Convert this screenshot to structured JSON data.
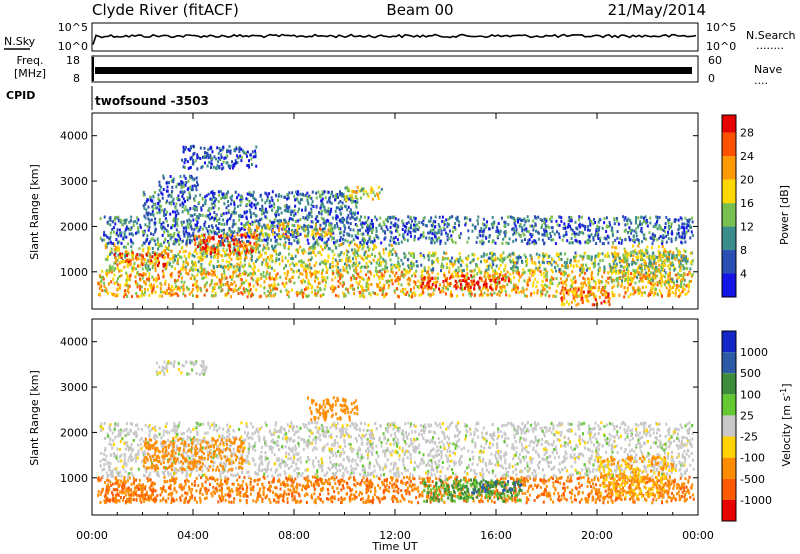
{
  "header": {
    "station": "Clyde River (fitACF)",
    "beam": "Beam 00",
    "date": "21/May/2014"
  },
  "strip": {
    "nsky_label": "N.Sky",
    "nsearch_label": "N.Search",
    "nsearch_dots": "........",
    "freq_label_top": "Freq.",
    "freq_label_bottom": "[MHz]",
    "nave_label": "Nave",
    "nave_dots": "....",
    "cpid_label": "CPID",
    "cpid_text": "twofsound -3503",
    "noise_left_ticks": [
      "10^5",
      "10^0"
    ],
    "noise_right_ticks": [
      "10^5",
      "10^0"
    ],
    "freq_ticks": [
      "18",
      "8"
    ],
    "nave_ticks": [
      "60",
      "0"
    ]
  },
  "chart_data": [
    {
      "type": "heatmap",
      "name": "power",
      "xlabel": "",
      "ylabel": "Slant Range [km]",
      "x_ticks": [
        "00:00",
        "04:00",
        "08:00",
        "12:00",
        "16:00",
        "20:00",
        "00:00"
      ],
      "x_tick_hours": [
        0,
        4,
        8,
        12,
        16,
        20,
        24
      ],
      "xlim_hours": [
        0,
        24
      ],
      "y_ticks": [
        1000,
        2000,
        3000,
        4000
      ],
      "ylim": [
        180,
        4500
      ],
      "colorbar_label": "Power [dB]",
      "colorbar_ticks": [
        4,
        8,
        12,
        16,
        20,
        24,
        28
      ],
      "colorbar_range": [
        0,
        31
      ],
      "colors": [
        "#1414e6",
        "#2a50b4",
        "#3c8c8c",
        "#78c050",
        "#ffd700",
        "#ff9a00",
        "#ff5000",
        "#e60000"
      ],
      "bands": [
        {
          "t0": 0.2,
          "t1": 23.8,
          "r0": 480,
          "r1": 1050,
          "level": 20
        },
        {
          "t0": 0.5,
          "t1": 12.0,
          "r0": 1050,
          "r1": 1650,
          "level": 16
        },
        {
          "t0": 12.0,
          "t1": 23.8,
          "r0": 1050,
          "r1": 1450,
          "level": 14
        },
        {
          "t0": 0.3,
          "t1": 23.8,
          "r0": 1650,
          "r1": 2250,
          "level": 8
        },
        {
          "t0": 2.0,
          "t1": 10.5,
          "r0": 2250,
          "r1": 2800,
          "level": 8
        },
        {
          "t0": 2.6,
          "t1": 4.2,
          "r0": 2800,
          "r1": 3150,
          "level": 8
        },
        {
          "t0": 10.0,
          "t1": 11.5,
          "r0": 2600,
          "r1": 2900,
          "level": 16
        },
        {
          "t0": 3.5,
          "t1": 6.5,
          "r0": 3300,
          "r1": 3800,
          "level": 6
        },
        {
          "t0": 6.0,
          "t1": 9.5,
          "r0": 1800,
          "r1": 2100,
          "level": 18
        },
        {
          "t0": 13.0,
          "t1": 16.5,
          "r0": 650,
          "r1": 950,
          "level": 28
        },
        {
          "t0": 4.0,
          "t1": 6.5,
          "r0": 1400,
          "r1": 1850,
          "level": 26
        },
        {
          "t0": 0.8,
          "t1": 3.0,
          "r0": 1150,
          "r1": 1450,
          "level": 24
        },
        {
          "t0": 18.5,
          "t1": 20.5,
          "r0": 300,
          "r1": 700,
          "level": 24
        },
        {
          "t0": 20.5,
          "t1": 23.5,
          "r0": 800,
          "r1": 1600,
          "level": 16
        }
      ]
    },
    {
      "type": "heatmap",
      "name": "velocity",
      "xlabel": "Time UT",
      "ylabel": "Slant Range [km]",
      "x_ticks": [
        "00:00",
        "04:00",
        "08:00",
        "12:00",
        "16:00",
        "20:00",
        "00:00"
      ],
      "x_tick_hours": [
        0,
        4,
        8,
        12,
        16,
        20,
        24
      ],
      "xlim_hours": [
        0,
        24
      ],
      "y_ticks": [
        1000,
        2000,
        3000,
        4000
      ],
      "ylim": [
        180,
        4500
      ],
      "colorbar_label": "Velocity [m s^-1]",
      "colorbar_ticks": [
        "1000",
        "500",
        "100",
        "25",
        "-25",
        "-100",
        "-500",
        "-1000"
      ],
      "colors": [
        "#1428c8",
        "#2d5aa5",
        "#3c8c3c",
        "#64c832",
        "#c8c8c8",
        "#ffd200",
        "#ff8c00",
        "#ff5a00",
        "#e60000"
      ],
      "bands": [
        {
          "t0": 0.2,
          "t1": 23.8,
          "r0": 480,
          "r1": 1050,
          "level": -250
        },
        {
          "t0": 0.3,
          "t1": 23.8,
          "r0": 1050,
          "r1": 2250,
          "level": 0
        },
        {
          "t0": 2.0,
          "t1": 6.0,
          "r0": 1200,
          "r1": 1900,
          "level": -150
        },
        {
          "t0": 2.5,
          "t1": 4.5,
          "r0": 3300,
          "r1": 3600,
          "level": 0
        },
        {
          "t0": 8.5,
          "t1": 10.5,
          "r0": 2300,
          "r1": 2800,
          "level": -150
        },
        {
          "t0": 13.0,
          "t1": 17.0,
          "r0": 500,
          "r1": 1000,
          "level": 60
        },
        {
          "t0": 15.0,
          "t1": 17.0,
          "r0": 700,
          "r1": 950,
          "level": 300
        },
        {
          "t0": 20.0,
          "t1": 23.0,
          "r0": 600,
          "r1": 1500,
          "level": -60
        },
        {
          "t0": 0.5,
          "t1": 2.5,
          "r0": 500,
          "r1": 900,
          "level": -300
        }
      ]
    }
  ],
  "colors": {
    "axis": "#000000",
    "background": "#ffffff"
  }
}
